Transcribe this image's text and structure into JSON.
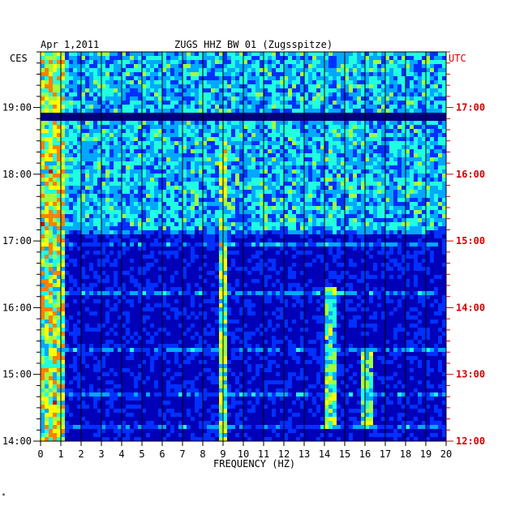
{
  "header": {
    "date": "Apr 1,2011",
    "station": "ZUGS HHZ BW 01 (Zugsspitze)",
    "left_timezone": "CES",
    "right_timezone": "UTC"
  },
  "footer": {
    "corner_mark": "*"
  },
  "chart_data": {
    "type": "heatmap",
    "title": "ZUGS HHZ BW 01 (Zugsspitze)",
    "xlabel": "FREQUENCY (HZ)",
    "ylabel_left": "CES",
    "ylabel_right": "UTC",
    "xlim": [
      0,
      20
    ],
    "x_ticks": [
      "0",
      "1",
      "2",
      "3",
      "4",
      "5",
      "6",
      "7",
      "8",
      "9",
      "10",
      "11",
      "12",
      "13",
      "14",
      "15",
      "16",
      "17",
      "18",
      "19",
      "20"
    ],
    "y_ticks_left": [
      "19:00",
      "18:00",
      "17:00",
      "16:00",
      "15:00",
      "14:00"
    ],
    "y_ticks_right": [
      "17:00",
      "16:00",
      "15:00",
      "14:00",
      "13:00",
      "12:00"
    ],
    "time_range_local": [
      "14:00",
      "19:50"
    ],
    "grid": true,
    "colormap": [
      "#00007a",
      "#0000b8",
      "#0030ff",
      "#00a8ff",
      "#20ffe0",
      "#a0ff40",
      "#ffff00",
      "#ff8000",
      "#d00000"
    ],
    "background_color": "#00008c",
    "tick_color_right": "#d40000",
    "features": [
      {
        "label": "low-frequency energy",
        "freq_hz": [
          0,
          1.2
        ],
        "time": [
          "14:00",
          "19:50"
        ],
        "intensity": 0.85
      },
      {
        "label": "9 Hz line",
        "freq_hz": [
          8.9,
          9.2
        ],
        "time": [
          "14:00",
          "19:00"
        ],
        "intensity": 0.75
      },
      {
        "label": "14.3 Hz line",
        "freq_hz": [
          14.1,
          14.6
        ],
        "time": [
          "14:10",
          "16:20"
        ],
        "intensity": 0.7
      },
      {
        "label": "16.1 Hz line",
        "freq_hz": [
          15.9,
          16.4
        ],
        "time": [
          "14:10",
          "15:20"
        ],
        "intensity": 0.65
      },
      {
        "label": "broadband noise",
        "freq_hz": [
          0,
          20
        ],
        "time": [
          "17:10",
          "19:50"
        ],
        "intensity": 0.55
      },
      {
        "label": "quiet gap",
        "freq_hz": [
          0,
          20
        ],
        "time": [
          "18:47",
          "18:57"
        ],
        "intensity": 0.05
      }
    ]
  }
}
